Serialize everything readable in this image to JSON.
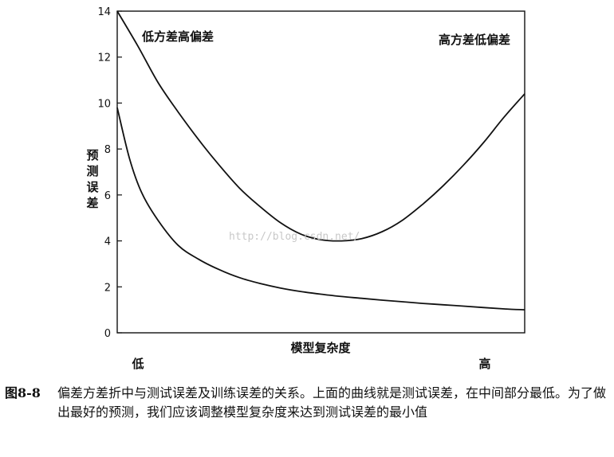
{
  "chart_data": {
    "type": "line",
    "ylabel": "预测误差",
    "xlabel": "模型复杂度",
    "ylim": [
      0,
      14
    ],
    "yticks": [
      0,
      2,
      4,
      6,
      8,
      10,
      12,
      14
    ],
    "xlim": [
      0,
      1
    ],
    "x_tick_labels": [
      "低",
      "高"
    ],
    "grid": false,
    "annotations": [
      "低方差高偏差",
      "高方差低偏差"
    ],
    "watermark": "http://blog.csdn.net/",
    "series": [
      {
        "key": "test",
        "x": [
          0.0,
          0.05,
          0.1,
          0.15,
          0.2,
          0.25,
          0.3,
          0.35,
          0.4,
          0.45,
          0.5,
          0.55,
          0.6,
          0.65,
          0.7,
          0.75,
          0.8,
          0.85,
          0.9,
          0.95,
          1.0
        ],
        "values": [
          14.0,
          12.5,
          10.9,
          9.6,
          8.4,
          7.3,
          6.3,
          5.5,
          4.8,
          4.3,
          4.05,
          4.0,
          4.1,
          4.4,
          4.9,
          5.6,
          6.4,
          7.3,
          8.3,
          9.4,
          10.4
        ]
      },
      {
        "key": "train",
        "x": [
          0.0,
          0.03,
          0.06,
          0.1,
          0.15,
          0.2,
          0.25,
          0.3,
          0.35,
          0.4,
          0.45,
          0.5,
          0.55,
          0.6,
          0.65,
          0.7,
          0.75,
          0.8,
          0.85,
          0.9,
          0.95,
          1.0
        ],
        "values": [
          9.8,
          7.6,
          6.1,
          4.9,
          3.8,
          3.2,
          2.75,
          2.4,
          2.15,
          1.95,
          1.8,
          1.68,
          1.58,
          1.5,
          1.42,
          1.35,
          1.28,
          1.22,
          1.16,
          1.1,
          1.04,
          1.0
        ]
      }
    ]
  },
  "caption": {
    "figure_number": "图8-8",
    "text": "偏差方差折中与测试误差及训练误差的关系。上面的曲线就是测试误差，在中间部分最低。为了做出最好的预测，我们应该调整模型复杂度来达到测试误差的最小值"
  }
}
